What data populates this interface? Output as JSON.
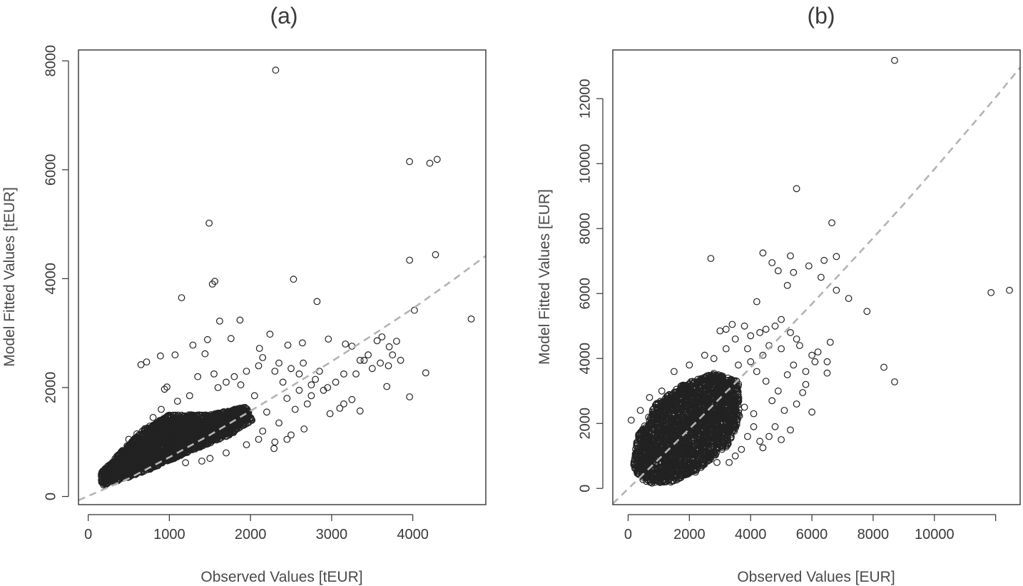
{
  "chart_data": [
    {
      "type": "scatter",
      "title": "(a)",
      "xlabel": "Observed Values [tEUR]",
      "ylabel": "Model Fitted Values [tEUR]",
      "xlim": [
        -120,
        4900
      ],
      "ylim": [
        -150,
        8200
      ],
      "xticks": [
        0,
        1000,
        2000,
        3000,
        4000
      ],
      "yticks": [
        0,
        2000,
        4000,
        6000,
        8000
      ],
      "x_tick_labels": [
        "0",
        "1000",
        "2000",
        "3000",
        "4000"
      ],
      "y_tick_labels": [
        "0",
        "2000",
        "4000",
        "6000",
        "8000"
      ],
      "grid": false,
      "reference_line": {
        "style": "dashed",
        "color": "#b4b4b4",
        "color_over_points": "#dcdcdc",
        "x": [
          -120,
          500,
          1000,
          1500,
          2000,
          2500,
          3000,
          3500,
          4000,
          4500,
          4900
        ],
        "y": [
          -70,
          330,
          720,
          1130,
          1570,
          2020,
          2480,
          2960,
          3450,
          3980,
          4420
        ]
      },
      "dense_cluster": [
        {
          "x": 170,
          "y": 200
        },
        {
          "x": 330,
          "y": 260
        },
        {
          "x": 800,
          "y": 520
        },
        {
          "x": 1300,
          "y": 860
        },
        {
          "x": 1750,
          "y": 1130
        },
        {
          "x": 2020,
          "y": 1400
        },
        {
          "x": 1950,
          "y": 1650
        },
        {
          "x": 1500,
          "y": 1500
        },
        {
          "x": 1000,
          "y": 1500
        },
        {
          "x": 700,
          "y": 1250
        },
        {
          "x": 360,
          "y": 760
        },
        {
          "x": 150,
          "y": 420
        }
      ],
      "points": [
        {
          "x": 2310,
          "y": 7830
        },
        {
          "x": 1490,
          "y": 5020
        },
        {
          "x": 3960,
          "y": 6150
        },
        {
          "x": 4210,
          "y": 6120
        },
        {
          "x": 4300,
          "y": 6190
        },
        {
          "x": 3960,
          "y": 4340
        },
        {
          "x": 4280,
          "y": 4440
        },
        {
          "x": 1530,
          "y": 3900
        },
        {
          "x": 1560,
          "y": 3950
        },
        {
          "x": 2530,
          "y": 3990
        },
        {
          "x": 1150,
          "y": 3650
        },
        {
          "x": 2820,
          "y": 3580
        },
        {
          "x": 4020,
          "y": 3420
        },
        {
          "x": 4720,
          "y": 3260
        },
        {
          "x": 1620,
          "y": 3220
        },
        {
          "x": 1870,
          "y": 3240
        },
        {
          "x": 2240,
          "y": 2980
        },
        {
          "x": 1470,
          "y": 2880
        },
        {
          "x": 1760,
          "y": 2900
        },
        {
          "x": 2960,
          "y": 2890
        },
        {
          "x": 3620,
          "y": 2930
        },
        {
          "x": 3800,
          "y": 2850
        },
        {
          "x": 2640,
          "y": 2820
        },
        {
          "x": 2110,
          "y": 2720
        },
        {
          "x": 2460,
          "y": 2780
        },
        {
          "x": 3170,
          "y": 2800
        },
        {
          "x": 3250,
          "y": 2760
        },
        {
          "x": 3560,
          "y": 2860
        },
        {
          "x": 3710,
          "y": 2750
        },
        {
          "x": 4160,
          "y": 2270
        },
        {
          "x": 3680,
          "y": 2020
        },
        {
          "x": 3960,
          "y": 1830
        },
        {
          "x": 3350,
          "y": 1570
        },
        {
          "x": 2980,
          "y": 1520
        },
        {
          "x": 2660,
          "y": 1240
        },
        {
          "x": 2500,
          "y": 1130
        },
        {
          "x": 2290,
          "y": 880
        },
        {
          "x": 650,
          "y": 2420
        },
        {
          "x": 720,
          "y": 2470
        },
        {
          "x": 890,
          "y": 2580
        },
        {
          "x": 1070,
          "y": 2600
        },
        {
          "x": 1290,
          "y": 2780
        },
        {
          "x": 1440,
          "y": 2620
        },
        {
          "x": 940,
          "y": 1970
        },
        {
          "x": 970,
          "y": 2010
        },
        {
          "x": 2300,
          "y": 2300
        },
        {
          "x": 2400,
          "y": 2100
        },
        {
          "x": 2600,
          "y": 2250
        },
        {
          "x": 2750,
          "y": 2050
        },
        {
          "x": 2850,
          "y": 2300
        },
        {
          "x": 2900,
          "y": 1950
        },
        {
          "x": 3050,
          "y": 2100
        },
        {
          "x": 3150,
          "y": 2250
        },
        {
          "x": 3300,
          "y": 2250
        },
        {
          "x": 3400,
          "y": 2500
        },
        {
          "x": 3450,
          "y": 2600
        },
        {
          "x": 3500,
          "y": 2350
        },
        {
          "x": 3150,
          "y": 1700
        },
        {
          "x": 3250,
          "y": 1780
        },
        {
          "x": 3100,
          "y": 1620
        },
        {
          "x": 2700,
          "y": 1700
        },
        {
          "x": 2550,
          "y": 1600
        },
        {
          "x": 2450,
          "y": 1800
        },
        {
          "x": 2350,
          "y": 1350
        },
        {
          "x": 2200,
          "y": 1550
        },
        {
          "x": 2150,
          "y": 1200
        },
        {
          "x": 2050,
          "y": 1850
        },
        {
          "x": 2100,
          "y": 1050
        },
        {
          "x": 1950,
          "y": 950
        },
        {
          "x": 1880,
          "y": 2050
        },
        {
          "x": 1800,
          "y": 2200
        },
        {
          "x": 1700,
          "y": 2100
        },
        {
          "x": 1600,
          "y": 2000
        },
        {
          "x": 1550,
          "y": 2250
        },
        {
          "x": 1350,
          "y": 2200
        },
        {
          "x": 1250,
          "y": 1850
        },
        {
          "x": 1100,
          "y": 1750
        },
        {
          "x": 900,
          "y": 1600
        },
        {
          "x": 800,
          "y": 1450
        },
        {
          "x": 600,
          "y": 1150
        },
        {
          "x": 500,
          "y": 1050
        },
        {
          "x": 2150,
          "y": 2550
        },
        {
          "x": 2350,
          "y": 2450
        },
        {
          "x": 2500,
          "y": 2350
        },
        {
          "x": 2650,
          "y": 2450
        },
        {
          "x": 2800,
          "y": 2150
        },
        {
          "x": 2100,
          "y": 2400
        },
        {
          "x": 1950,
          "y": 2300
        },
        {
          "x": 2600,
          "y": 1950
        },
        {
          "x": 2750,
          "y": 1850
        },
        {
          "x": 2950,
          "y": 2000
        },
        {
          "x": 3350,
          "y": 2500
        },
        {
          "x": 3600,
          "y": 2450
        },
        {
          "x": 3850,
          "y": 2500
        },
        {
          "x": 3750,
          "y": 2600
        },
        {
          "x": 3700,
          "y": 2400
        },
        {
          "x": 1700,
          "y": 800
        },
        {
          "x": 1500,
          "y": 700
        },
        {
          "x": 1400,
          "y": 650
        },
        {
          "x": 1200,
          "y": 620
        },
        {
          "x": 2300,
          "y": 1000
        },
        {
          "x": 2450,
          "y": 1050
        }
      ]
    },
    {
      "type": "scatter",
      "title": "(b)",
      "xlabel": "Observed Values [EUR]",
      "ylabel": "Model Fitted Values [EUR]",
      "xlim": [
        -500,
        12800
      ],
      "ylim": [
        -500,
        13500
      ],
      "xticks": [
        0,
        2000,
        4000,
        6000,
        8000,
        10000,
        12000
      ],
      "yticks": [
        0,
        2000,
        4000,
        6000,
        8000,
        10000,
        12000
      ],
      "x_tick_labels": [
        "0",
        "2000",
        "4000",
        "6000",
        "8000",
        "10000",
        ""
      ],
      "y_tick_labels": [
        "0",
        "2000",
        "4000",
        "6000",
        "8000",
        "10000",
        "12000"
      ],
      "grid": false,
      "reference_line": {
        "style": "dashed",
        "color": "#b4b4b4",
        "color_over_points": "#dcdcdc",
        "x": [
          -500,
          1000,
          2000,
          3000,
          4000,
          5000,
          6000,
          7000,
          8000,
          9000,
          10000,
          11000,
          12000,
          12800
        ],
        "y": [
          -470,
          900,
          1830,
          2780,
          3720,
          4700,
          5680,
          6690,
          7710,
          8750,
          9830,
          10930,
          12040,
          12960
        ]
      },
      "dense_cluster": [
        {
          "x": 150,
          "y": 600
        },
        {
          "x": 600,
          "y": 150
        },
        {
          "x": 1500,
          "y": 200
        },
        {
          "x": 2400,
          "y": 650
        },
        {
          "x": 3300,
          "y": 1350
        },
        {
          "x": 3650,
          "y": 2200
        },
        {
          "x": 3600,
          "y": 3300
        },
        {
          "x": 2800,
          "y": 3550
        },
        {
          "x": 1800,
          "y": 3200
        },
        {
          "x": 900,
          "y": 2600
        },
        {
          "x": 300,
          "y": 1600
        }
      ],
      "points": [
        {
          "x": 8700,
          "y": 13180
        },
        {
          "x": 5500,
          "y": 9230
        },
        {
          "x": 6650,
          "y": 8180
        },
        {
          "x": 2700,
          "y": 7080
        },
        {
          "x": 4400,
          "y": 7250
        },
        {
          "x": 5300,
          "y": 7160
        },
        {
          "x": 6800,
          "y": 7140
        },
        {
          "x": 6400,
          "y": 7020
        },
        {
          "x": 4700,
          "y": 6950
        },
        {
          "x": 5900,
          "y": 6850
        },
        {
          "x": 4900,
          "y": 6700
        },
        {
          "x": 5400,
          "y": 6650
        },
        {
          "x": 6300,
          "y": 6500
        },
        {
          "x": 5200,
          "y": 6250
        },
        {
          "x": 6800,
          "y": 6100
        },
        {
          "x": 7200,
          "y": 5850
        },
        {
          "x": 4200,
          "y": 5750
        },
        {
          "x": 7800,
          "y": 5450
        },
        {
          "x": 11850,
          "y": 6030
        },
        {
          "x": 12450,
          "y": 6100
        },
        {
          "x": 8350,
          "y": 3730
        },
        {
          "x": 8700,
          "y": 3280
        },
        {
          "x": 6600,
          "y": 4500
        },
        {
          "x": 6500,
          "y": 3900
        },
        {
          "x": 6500,
          "y": 3550
        },
        {
          "x": 6000,
          "y": 4100
        },
        {
          "x": 6100,
          "y": 3900
        },
        {
          "x": 5800,
          "y": 3200
        },
        {
          "x": 6000,
          "y": 2350
        },
        {
          "x": 5700,
          "y": 2950
        },
        {
          "x": 5500,
          "y": 4600
        },
        {
          "x": 5600,
          "y": 4400
        },
        {
          "x": 5300,
          "y": 4800
        },
        {
          "x": 5000,
          "y": 5200
        },
        {
          "x": 4800,
          "y": 5000
        },
        {
          "x": 4500,
          "y": 4900
        },
        {
          "x": 4300,
          "y": 4800
        },
        {
          "x": 4000,
          "y": 4700
        },
        {
          "x": 3800,
          "y": 5000
        },
        {
          "x": 3400,
          "y": 5050
        },
        {
          "x": 3200,
          "y": 4900
        },
        {
          "x": 3000,
          "y": 4850
        },
        {
          "x": 5100,
          "y": 2400
        },
        {
          "x": 4800,
          "y": 1900
        },
        {
          "x": 4600,
          "y": 1600
        },
        {
          "x": 4400,
          "y": 1250
        },
        {
          "x": 4300,
          "y": 1450
        },
        {
          "x": 4100,
          "y": 1900
        },
        {
          "x": 3900,
          "y": 1600
        },
        {
          "x": 3700,
          "y": 1200
        },
        {
          "x": 3500,
          "y": 1000
        },
        {
          "x": 2900,
          "y": 800
        },
        {
          "x": 2600,
          "y": 950
        },
        {
          "x": 5500,
          "y": 2600
        },
        {
          "x": 5200,
          "y": 3500
        },
        {
          "x": 5400,
          "y": 3800
        },
        {
          "x": 4900,
          "y": 3000
        },
        {
          "x": 4700,
          "y": 2700
        },
        {
          "x": 4500,
          "y": 3300
        },
        {
          "x": 4200,
          "y": 3600
        },
        {
          "x": 4000,
          "y": 3900
        },
        {
          "x": 3900,
          "y": 4300
        },
        {
          "x": 4100,
          "y": 2300
        },
        {
          "x": 3800,
          "y": 2500
        },
        {
          "x": 2000,
          "y": 3800
        },
        {
          "x": 1500,
          "y": 3600
        },
        {
          "x": 1100,
          "y": 3000
        },
        {
          "x": 700,
          "y": 2800
        },
        {
          "x": 400,
          "y": 2400
        },
        {
          "x": 100,
          "y": 2100
        },
        {
          "x": 2500,
          "y": 4100
        },
        {
          "x": 2800,
          "y": 4000
        },
        {
          "x": 3200,
          "y": 4300
        },
        {
          "x": 3500,
          "y": 4600
        },
        {
          "x": 3600,
          "y": 3800
        },
        {
          "x": 4400,
          "y": 4100
        },
        {
          "x": 4600,
          "y": 4400
        },
        {
          "x": 5000,
          "y": 4300
        },
        {
          "x": 5800,
          "y": 3600
        },
        {
          "x": 6200,
          "y": 4200
        },
        {
          "x": 5300,
          "y": 1800
        },
        {
          "x": 5000,
          "y": 1500
        },
        {
          "x": 3300,
          "y": 800
        },
        {
          "x": 2200,
          "y": 500
        }
      ]
    }
  ]
}
